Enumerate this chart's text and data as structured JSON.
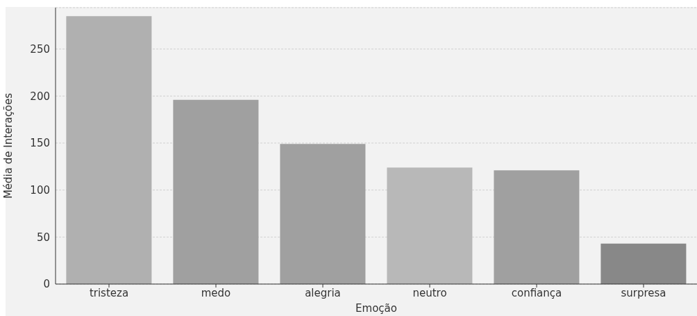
{
  "chart_data": {
    "type": "bar",
    "xlabel": "Emoção",
    "ylabel": "Média de Interações",
    "categories": [
      "tristeza",
      "medo",
      "alegria",
      "neutro",
      "confiança",
      "surpresa"
    ],
    "values": [
      285,
      196,
      149,
      124,
      121,
      43
    ],
    "colors": [
      "#b0b0b0",
      "#a0a0a0",
      "#a0a0a0",
      "#b8b8b8",
      "#a0a0a0",
      "#888888"
    ],
    "ylim": [
      0,
      294
    ],
    "yticks": [
      0,
      50,
      100,
      150,
      200,
      250
    ],
    "grid": "y"
  }
}
